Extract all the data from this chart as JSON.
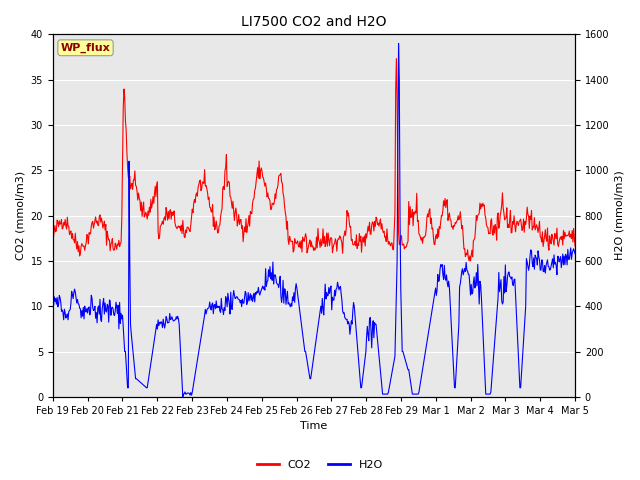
{
  "title": "LI7500 CO2 and H2O",
  "xlabel": "Time",
  "ylabel_left": "CO2 (mmol/m3)",
  "ylabel_right": "H2O (mmol/m3)",
  "annotation": "WP_flux",
  "annotation_color": "#8B0000",
  "annotation_bg": "#FFFF99",
  "ylim_left": [
    0,
    40
  ],
  "ylim_right": [
    0,
    1600
  ],
  "yticks_left": [
    0,
    5,
    10,
    15,
    20,
    25,
    30,
    35,
    40
  ],
  "yticks_right": [
    0,
    200,
    400,
    600,
    800,
    1000,
    1200,
    1400,
    1600
  ],
  "background_color": "#e8e8e8",
  "grid_color": "white",
  "tick_labels": [
    "Feb 19",
    "Feb 20",
    "Feb 21",
    "Feb 22",
    "Feb 23",
    "Feb 24",
    "Feb 25",
    "Feb 26",
    "Feb 27",
    "Feb 28",
    "Feb 29",
    "Mar 1",
    "Mar 2",
    "Mar 3",
    "Mar 4",
    "Mar 5"
  ],
  "co2_color": "red",
  "h2o_color": "blue",
  "line_width": 0.8,
  "title_fontsize": 10,
  "axis_fontsize": 8,
  "tick_fontsize": 7
}
